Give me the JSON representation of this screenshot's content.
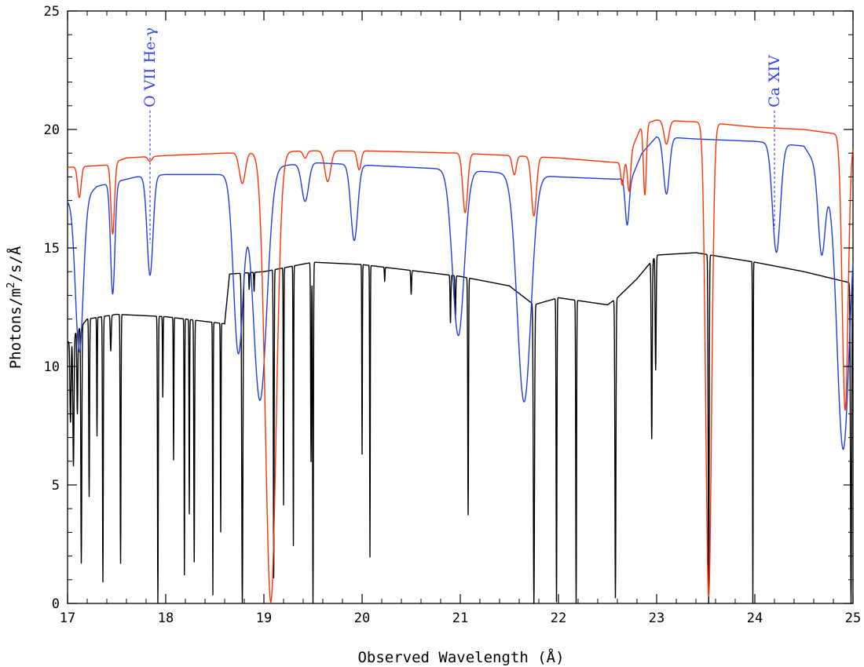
{
  "chart_data": {
    "type": "line",
    "xlabel": "Observed Wavelength (Å)",
    "ylabel": "Photons/m^2/s/Å",
    "ylabel_parts": [
      "Photons/m",
      "2",
      "/s/Å"
    ],
    "xlim": [
      17,
      25
    ],
    "ylim": [
      0,
      25
    ],
    "x_ticks": [
      17,
      18,
      19,
      20,
      21,
      22,
      23,
      24,
      25
    ],
    "y_ticks": [
      0,
      5,
      10,
      15,
      20,
      25
    ],
    "grid": false,
    "annotations": [
      {
        "text": "O VII He-γ",
        "x": 17.84,
        "y_top": 20.8,
        "y_bottom": 15.2,
        "color": "#3344ee"
      },
      {
        "text": "Ca XIV",
        "x": 24.2,
        "y_top": 20.8,
        "y_bottom": 15.8,
        "color": "#3344ee"
      }
    ],
    "series": [
      {
        "color": "#ff3300",
        "continuum": [
          [
            17.0,
            18.4
          ],
          [
            17.4,
            18.5
          ],
          [
            17.6,
            18.8
          ],
          [
            18.0,
            18.9
          ],
          [
            18.6,
            19.0
          ],
          [
            19.5,
            19.1
          ],
          [
            20.0,
            19.1
          ],
          [
            21.0,
            19.0
          ],
          [
            22.0,
            18.8
          ],
          [
            22.6,
            18.6
          ],
          [
            22.7,
            18.7
          ],
          [
            22.85,
            20.2
          ],
          [
            23.0,
            20.4
          ],
          [
            23.5,
            20.3
          ],
          [
            24.0,
            20.1
          ],
          [
            24.5,
            20.0
          ],
          [
            24.85,
            19.8
          ],
          [
            25.0,
            19.5
          ]
        ],
        "lines": [
          [
            17.12,
            1.3,
            0.018
          ],
          [
            17.46,
            3.0,
            0.018
          ],
          [
            17.84,
            0.2,
            0.02
          ],
          [
            18.78,
            1.3,
            0.03
          ],
          [
            19.07,
            19.0,
            0.055
          ],
          [
            19.42,
            0.3,
            0.02
          ],
          [
            19.65,
            1.3,
            0.03
          ],
          [
            19.97,
            0.8,
            0.02
          ],
          [
            21.05,
            2.5,
            0.025
          ],
          [
            21.55,
            0.8,
            0.02
          ],
          [
            21.75,
            2.5,
            0.025
          ],
          [
            22.65,
            1.0,
            0.015
          ],
          [
            22.72,
            1.5,
            0.015
          ],
          [
            22.88,
            3.0,
            0.015
          ],
          [
            23.1,
            1.0,
            0.025
          ],
          [
            23.53,
            20.0,
            0.03
          ],
          [
            24.92,
            11.5,
            0.03
          ]
        ]
      },
      {
        "color": "#1f3fe0",
        "continuum": [
          [
            17.0,
            17.0
          ],
          [
            17.2,
            17.2
          ],
          [
            17.3,
            17.6
          ],
          [
            17.5,
            17.8
          ],
          [
            17.7,
            18.0
          ],
          [
            18.0,
            18.1
          ],
          [
            18.6,
            18.1
          ],
          [
            19.0,
            18.4
          ],
          [
            19.5,
            18.6
          ],
          [
            20.0,
            18.5
          ],
          [
            21.0,
            18.3
          ],
          [
            22.0,
            18.0
          ],
          [
            22.6,
            17.9
          ],
          [
            22.75,
            18.0
          ],
          [
            22.85,
            19.0
          ],
          [
            23.0,
            19.7
          ],
          [
            23.4,
            19.6
          ],
          [
            24.0,
            19.5
          ],
          [
            24.5,
            19.3
          ],
          [
            24.85,
            17.0
          ],
          [
            25.0,
            17.0
          ]
        ],
        "lines": [
          [
            17.12,
            6.5,
            0.04
          ],
          [
            17.46,
            4.7,
            0.022
          ],
          [
            17.84,
            4.2,
            0.03
          ],
          [
            18.74,
            7.6,
            0.05
          ],
          [
            18.96,
            9.8,
            0.07
          ],
          [
            19.42,
            1.6,
            0.035
          ],
          [
            19.92,
            3.2,
            0.035
          ],
          [
            20.98,
            7.0,
            0.06
          ],
          [
            21.65,
            9.6,
            0.07
          ],
          [
            22.7,
            2.0,
            0.02
          ],
          [
            23.1,
            2.4,
            0.03
          ],
          [
            24.22,
            4.6,
            0.04
          ],
          [
            24.68,
            3.4,
            0.035
          ],
          [
            24.9,
            10.5,
            0.06
          ]
        ]
      },
      {
        "color": "#000000",
        "continuum": [
          [
            17.0,
            11.0
          ],
          [
            17.2,
            12.0
          ],
          [
            17.5,
            12.2
          ],
          [
            18.0,
            12.1
          ],
          [
            18.6,
            11.8
          ],
          [
            18.65,
            13.9
          ],
          [
            19.0,
            14.0
          ],
          [
            19.5,
            14.4
          ],
          [
            20.0,
            14.3
          ],
          [
            21.0,
            13.8
          ],
          [
            21.5,
            13.4
          ],
          [
            21.75,
            12.6
          ],
          [
            22.0,
            12.9
          ],
          [
            22.5,
            12.6
          ],
          [
            22.6,
            12.9
          ],
          [
            22.8,
            13.7
          ],
          [
            23.0,
            14.7
          ],
          [
            23.4,
            14.8
          ],
          [
            24.0,
            14.4
          ],
          [
            24.5,
            14.0
          ],
          [
            25.0,
            13.5
          ]
        ],
        "lines": [
          [
            17.03,
            3.5,
            0.006
          ],
          [
            17.06,
            5.5,
            0.006
          ],
          [
            17.1,
            3.5,
            0.005
          ],
          [
            17.14,
            10.0,
            0.005
          ],
          [
            17.22,
            7.5,
            0.004
          ],
          [
            17.3,
            5.0,
            0.003
          ],
          [
            17.36,
            11.2,
            0.004
          ],
          [
            17.44,
            1.5,
            0.005
          ],
          [
            17.54,
            10.5,
            0.004
          ],
          [
            17.92,
            12.1,
            0.004
          ],
          [
            17.97,
            3.4,
            0.003
          ],
          [
            18.08,
            6.0,
            0.003
          ],
          [
            18.19,
            10.8,
            0.003
          ],
          [
            18.24,
            8.2,
            0.003
          ],
          [
            18.29,
            10.2,
            0.004
          ],
          [
            18.48,
            11.5,
            0.003
          ],
          [
            18.56,
            8.8,
            0.003
          ],
          [
            18.78,
            13.9,
            0.006
          ],
          [
            18.85,
            0.7,
            0.003
          ],
          [
            18.9,
            0.8,
            0.003
          ],
          [
            19.1,
            13.0,
            0.004
          ],
          [
            19.2,
            10.0,
            0.003
          ],
          [
            19.3,
            11.8,
            0.003
          ],
          [
            19.48,
            8.4,
            0.004
          ],
          [
            19.5,
            14.4,
            0.004
          ],
          [
            20.0,
            8.0,
            0.003
          ],
          [
            20.08,
            12.3,
            0.003
          ],
          [
            20.23,
            0.6,
            0.003
          ],
          [
            20.5,
            1.0,
            0.004
          ],
          [
            20.9,
            2.0,
            0.004
          ],
          [
            20.95,
            1.8,
            0.004
          ],
          [
            21.08,
            10.0,
            0.004
          ],
          [
            21.75,
            12.6,
            0.006
          ],
          [
            21.98,
            12.8,
            0.004
          ],
          [
            22.18,
            12.8,
            0.004
          ],
          [
            22.58,
            12.6,
            0.005
          ],
          [
            22.95,
            7.5,
            0.005
          ],
          [
            22.99,
            4.8,
            0.005
          ],
          [
            23.53,
            14.8,
            0.005
          ],
          [
            23.98,
            14.4,
            0.003
          ],
          [
            24.98,
            13.5,
            0.006
          ]
        ]
      }
    ]
  }
}
